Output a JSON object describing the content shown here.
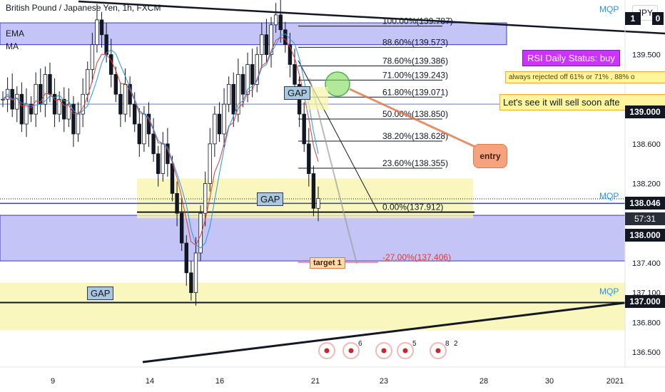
{
  "header": {
    "symbol": "British Pound / Japanese Yen, 1h, FXCM",
    "indicator1": "EMA",
    "indicator2": "MA",
    "currency_button": "JPY"
  },
  "colors": {
    "up": "#131722",
    "down": "#131722",
    "ema": "#e53935",
    "ma": "#2196f3",
    "blue_zone": "#9c9cf0",
    "yellow_zone": "#f7f3a8",
    "fib_line": "#131722",
    "accent": "#2196f3"
  },
  "annotations": {
    "rsi_status": "RSI Daily Status: buy",
    "rejected_note": "always rejected off 61% or 71% , 88% o",
    "sell_note": "Let's see it will sell soon afte",
    "entry": "entry",
    "target": "target 1",
    "gap1": "GAP",
    "gap2": "GAP",
    "gap3": "GAP",
    "mqp1": "MQP",
    "mqp2": "MQP",
    "mqp3": "MQP",
    "event_count_1": "6",
    "event_count_2": "5",
    "event_count_3": "8",
    "event_count_4": "2"
  },
  "price_badges": {
    "last": "138.046",
    "countdown": "57:31",
    "b139": "139.000",
    "b138": "138.000",
    "b137": "137.000",
    "top_partial": "1",
    "top_partial_2": "0"
  },
  "chart_data": {
    "type": "candlestick",
    "title": "British Pound / Japanese Yen, 1h, FXCM",
    "x_ticks": [
      "9",
      "14",
      "16",
      "21",
      "23",
      "28",
      "30",
      "2021"
    ],
    "y_ticks": [
      139.5,
      139.0,
      138.6,
      138.2,
      137.4,
      137.1,
      136.8,
      136.5
    ],
    "ylim": [
      136.35,
      140.0
    ],
    "last_price": 138.046,
    "fib_levels": [
      {
        "label": "100.00%(139.787)",
        "price": 139.787
      },
      {
        "label": "88.60%(139.573)",
        "price": 139.573
      },
      {
        "label": "78.60%(139.386)",
        "price": 139.386
      },
      {
        "label": "71.00%(139.243)",
        "price": 139.243
      },
      {
        "label": "61.80%(139.071)",
        "price": 139.071
      },
      {
        "label": "50.00%(138.850)",
        "price": 138.85
      },
      {
        "label": "38.20%(138.628)",
        "price": 138.628
      },
      {
        "label": "23.60%(138.355)",
        "price": 138.355
      },
      {
        "label": "0.00%(137.912)",
        "price": 137.912
      },
      {
        "label": "-27.00%(137.406)",
        "price": 137.406
      }
    ],
    "horizontal_levels": [
      139.0,
      138.0,
      137.0
    ],
    "zones": [
      {
        "kind": "blue",
        "from": 139.6,
        "to": 139.82
      },
      {
        "kind": "blue",
        "from": 137.42,
        "to": 137.88
      },
      {
        "kind": "yellow",
        "from": 137.85,
        "to": 138.25
      },
      {
        "kind": "yellow",
        "from": 136.72,
        "to": 137.2
      }
    ],
    "closes": [
      139.05,
      139.15,
      138.95,
      139.1,
      138.8,
      139.0,
      138.9,
      139.2,
      139.0,
      139.3,
      139.1,
      138.9,
      139.05,
      138.85,
      139.0,
      138.7,
      138.9,
      139.1,
      139.35,
      139.6,
      139.85,
      139.7,
      139.5,
      139.3,
      139.1,
      138.9,
      139.2,
      139.0,
      138.8,
      138.6,
      138.9,
      138.7,
      138.5,
      138.3,
      138.6,
      138.4,
      138.1,
      137.9,
      137.6,
      137.3,
      137.1,
      137.5,
      137.9,
      138.2,
      138.6,
      138.9,
      138.7,
      139.0,
      139.2,
      138.9,
      139.3,
      139.1,
      139.4,
      139.2,
      139.5,
      139.7,
      139.5,
      139.8,
      139.9,
      139.75,
      139.6,
      139.4,
      139.2,
      138.9,
      138.6,
      138.3,
      137.95,
      138.05
    ]
  }
}
